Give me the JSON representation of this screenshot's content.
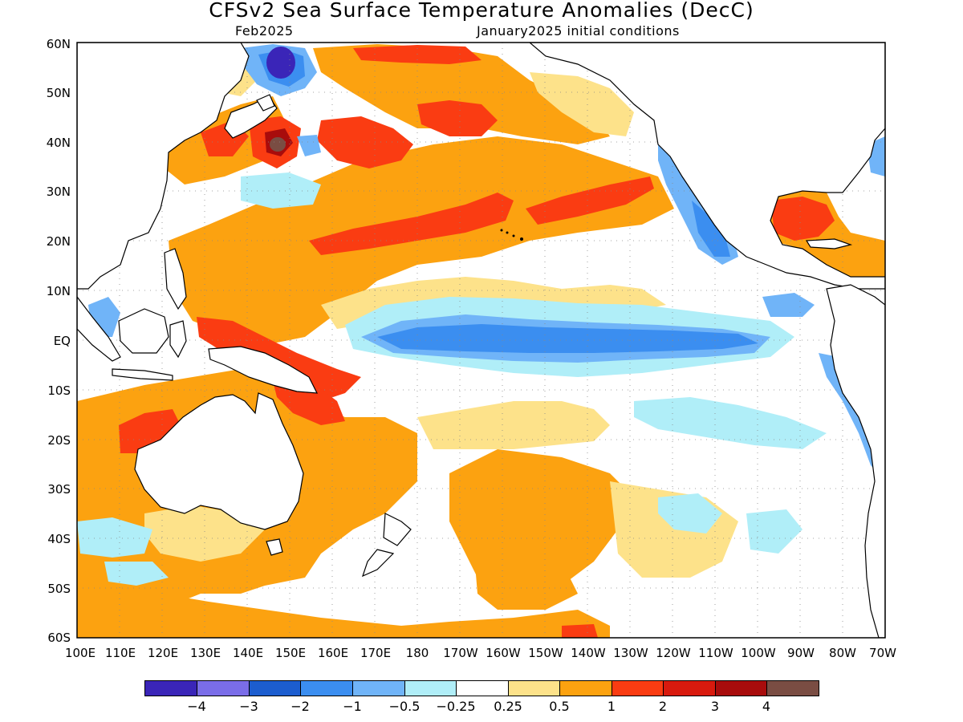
{
  "title": "CFSv2 Sea Surface Temperature Anomalies (DecC)",
  "subtitle_left": "Feb2025",
  "subtitle_right": "January2025 initial conditions",
  "lat_labels": [
    "60N",
    "50N",
    "40N",
    "30N",
    "20N",
    "10N",
    "EQ",
    "10S",
    "20S",
    "30S",
    "40S",
    "50S",
    "60S"
  ],
  "lon_labels": [
    "100E",
    "110E",
    "120E",
    "130E",
    "140E",
    "150E",
    "160E",
    "170E",
    "180",
    "170W",
    "160W",
    "150W",
    "140W",
    "130W",
    "120W",
    "110W",
    "100W",
    "90W",
    "80W",
    "70W"
  ],
  "colorbar": {
    "colors": [
      "#3a25b8",
      "#7a6de8",
      "#1c5dcf",
      "#3b8ef0",
      "#70b4f8",
      "#b0eef8",
      "#ffffff",
      "#fde28a",
      "#fca210",
      "#fa3c12",
      "#d81a0e",
      "#a80c0c",
      "#7a4d43"
    ],
    "labels": [
      "−4",
      "−3",
      "−2",
      "−1",
      "−0.5",
      "−0.25",
      "0.25",
      "0.5",
      "1",
      "2",
      "3",
      "4"
    ]
  }
}
